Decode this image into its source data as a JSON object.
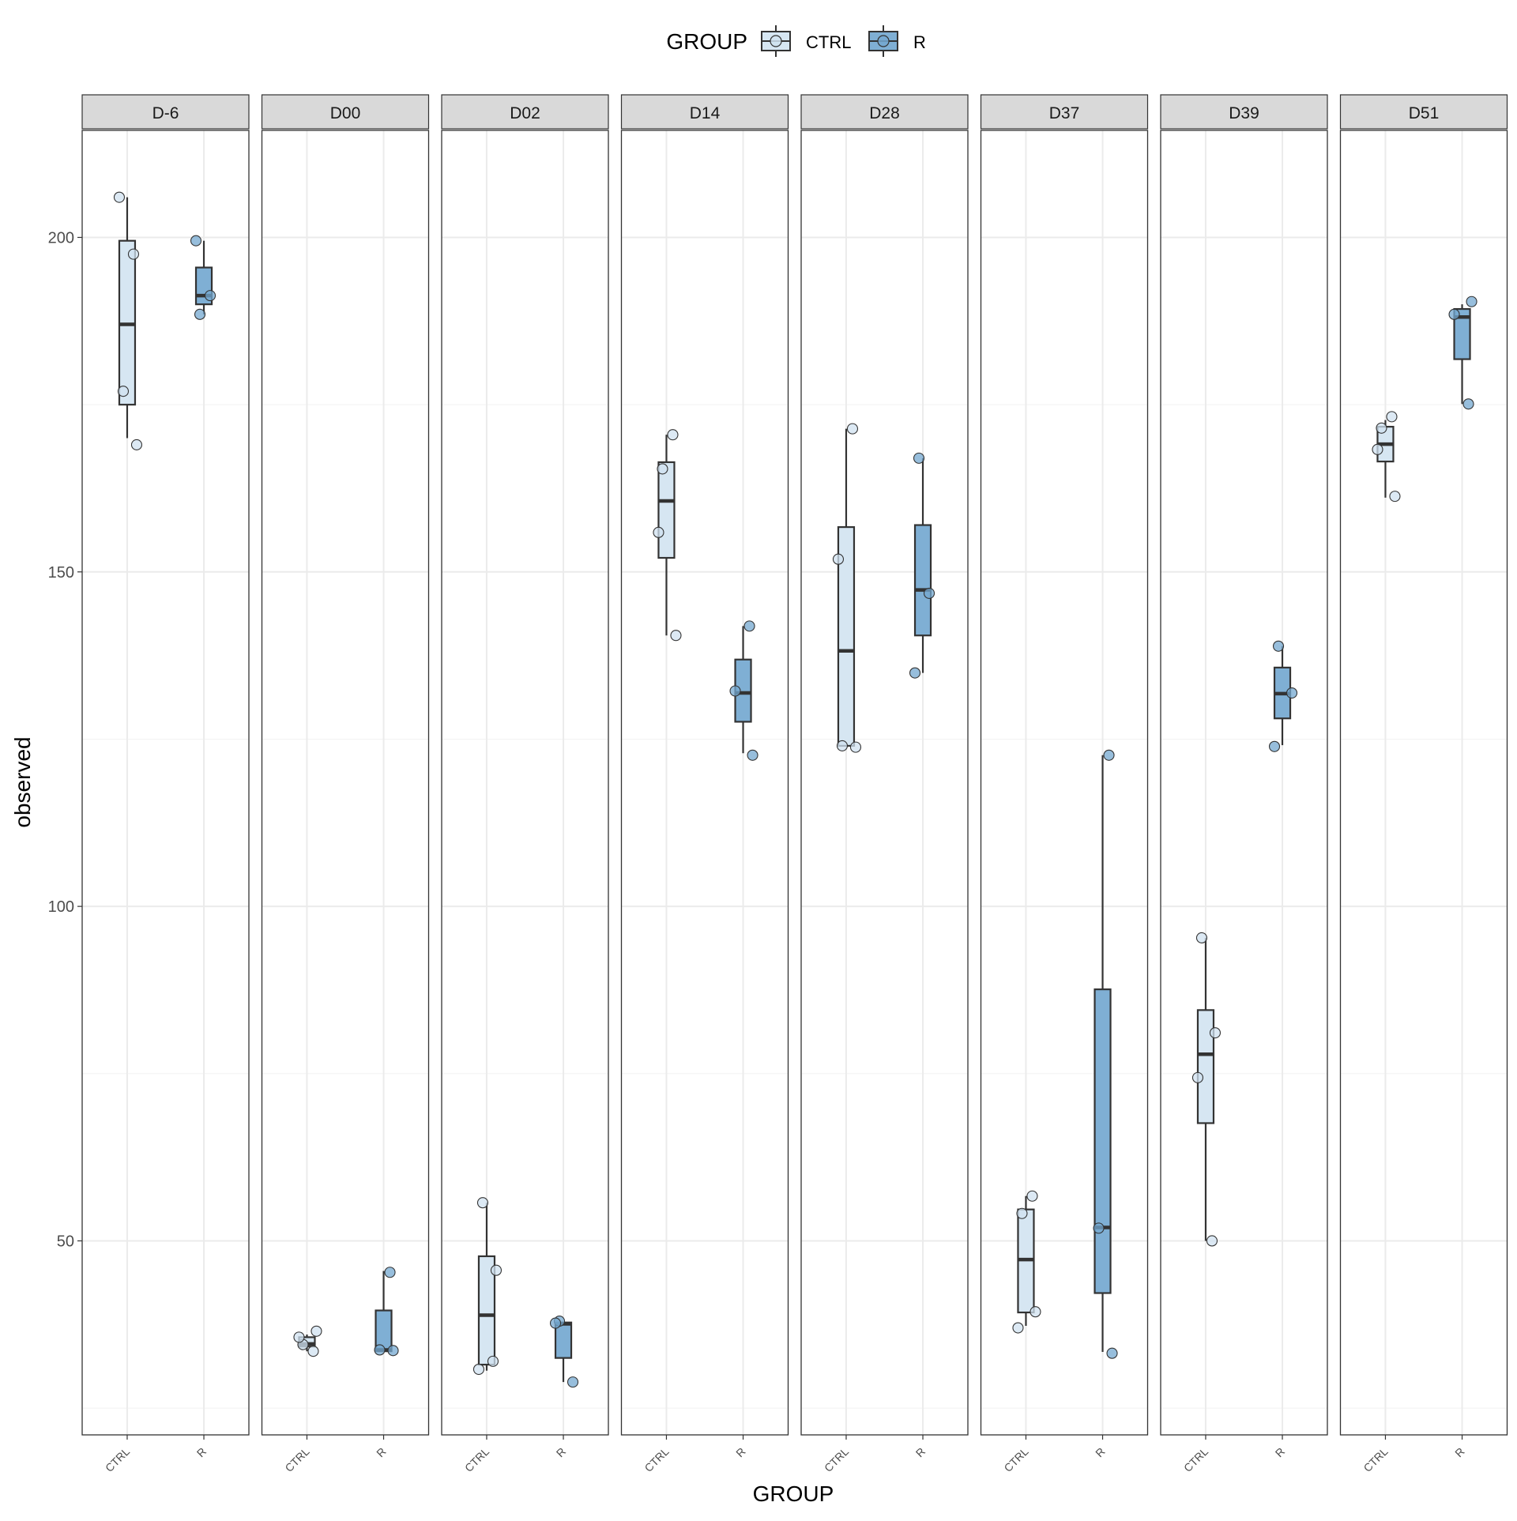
{
  "chart_data": {
    "type": "box",
    "facet_by": "day",
    "xlabel": "GROUP",
    "ylabel": "observed",
    "ylim": [
      21,
      216
    ],
    "y_ticks": [
      50,
      100,
      150,
      200
    ],
    "grid": true,
    "legend": {
      "title": "GROUP",
      "placement": "top",
      "entries": [
        {
          "key": "CTRL",
          "label": "CTRL"
        },
        {
          "key": "R",
          "label": "R"
        }
      ]
    },
    "categories": [
      "CTRL",
      "R"
    ],
    "colors": {
      "CTRL": "#d6e6f2",
      "R": "#7fafd4",
      "point_CTRL": "#d0e2f0",
      "point_R": "#74a8d0",
      "outline": "#333333"
    },
    "facets": [
      {
        "label": "D-6",
        "boxes": {
          "CTRL": {
            "min": 170,
            "q1": 175,
            "median": 187,
            "q3": 199.5,
            "max": 206,
            "points": [
              206,
              197.5,
              177,
              169
            ]
          },
          "R": {
            "min": 188.5,
            "q1": 190,
            "median": 191.3,
            "q3": 195.5,
            "max": 199.5,
            "points": [
              199.5,
              191.3,
              188.5
            ]
          }
        }
      },
      {
        "label": "D00",
        "boxes": {
          "CTRL": {
            "min": 33.5,
            "q1": 34.2,
            "median": 34.6,
            "q3": 35.6,
            "max": 36,
            "points": [
              33.5,
              34.5,
              36.5,
              35.6
            ]
          },
          "R": {
            "min": 33.5,
            "q1": 33.5,
            "median": 33.7,
            "q3": 39.6,
            "max": 45.5,
            "points": [
              45.3,
              33.7,
              33.6
            ]
          }
        }
      },
      {
        "label": "D02",
        "boxes": {
          "CTRL": {
            "min": 30.6,
            "q1": 31.5,
            "median": 38.9,
            "q3": 47.7,
            "max": 55.7,
            "points": [
              55.7,
              45.6,
              30.8,
              32
            ]
          },
          "R": {
            "min": 28.9,
            "q1": 32.5,
            "median": 37.6,
            "q3": 37.8,
            "max": 37.8,
            "points": [
              38,
              28.9,
              37.7
            ]
          }
        }
      },
      {
        "label": "D14",
        "boxes": {
          "CTRL": {
            "min": 140.5,
            "q1": 152.1,
            "median": 160.6,
            "q3": 166.4,
            "max": 170.5,
            "points": [
              140.5,
              155.9,
              170.5,
              165.4
            ]
          },
          "R": {
            "min": 122.9,
            "q1": 127.6,
            "median": 131.9,
            "q3": 136.9,
            "max": 141.9,
            "points": [
              122.6,
              132.2,
              141.9
            ]
          }
        }
      },
      {
        "label": "D28",
        "boxes": {
          "CTRL": {
            "min": 124,
            "q1": 124,
            "median": 138.2,
            "q3": 156.7,
            "max": 171.4,
            "points": [
              151.9,
              171.4,
              124,
              123.8
            ]
          },
          "R": {
            "min": 134.9,
            "q1": 140.5,
            "median": 147.3,
            "q3": 157,
            "max": 167,
            "points": [
              134.9,
              146.8,
              167
            ]
          }
        }
      },
      {
        "label": "D37",
        "boxes": {
          "CTRL": {
            "min": 37.3,
            "q1": 39.3,
            "median": 47.2,
            "q3": 54.7,
            "max": 56.7,
            "points": [
              56.7,
              54.1,
              39.4,
              37
            ]
          },
          "R": {
            "min": 33.4,
            "q1": 42.2,
            "median": 52,
            "q3": 87.6,
            "max": 122.6,
            "points": [
              122.6,
              51.9,
              33.2
            ]
          }
        }
      },
      {
        "label": "D39",
        "boxes": {
          "CTRL": {
            "min": 50,
            "q1": 67.6,
            "median": 77.9,
            "q3": 84.5,
            "max": 95.3,
            "points": [
              95.3,
              81.1,
              74.4,
              50
            ]
          },
          "R": {
            "min": 124.1,
            "q1": 128.1,
            "median": 131.8,
            "q3": 135.7,
            "max": 138.9,
            "points": [
              138.9,
              131.9,
              123.9
            ]
          }
        }
      },
      {
        "label": "D51",
        "boxes": {
          "CTRL": {
            "min": 161.1,
            "q1": 166.5,
            "median": 169.1,
            "q3": 171.7,
            "max": 172.7,
            "points": [
              161.3,
              168.3,
              173.2,
              171.5
            ]
          },
          "R": {
            "min": 175.1,
            "q1": 181.8,
            "median": 188.1,
            "q3": 189.3,
            "max": 190,
            "points": [
              190.4,
              188.5,
              175.1
            ]
          }
        }
      }
    ]
  }
}
